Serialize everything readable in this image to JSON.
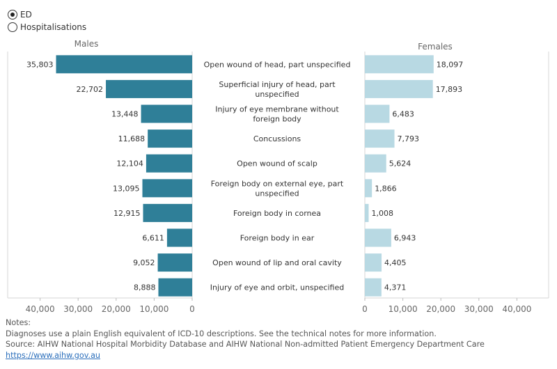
{
  "filter": {
    "options": [
      {
        "label": "ED",
        "selected": true
      },
      {
        "label": "Hospitalisations",
        "selected": false
      }
    ]
  },
  "chart_data": {
    "type": "bar",
    "orientation": "horizontal-butterfly",
    "categories": [
      "Open wound of head, part unspecified",
      "Superficial injury of head, part unspecified",
      "Injury of eye membrane without foreign body",
      "Concussions",
      "Open wound of scalp",
      "Foreign body on external eye, part unspecified",
      "Foreign body in cornea",
      "Foreign body in ear",
      "Open wound of lip and oral cavity",
      "Injury of eye and orbit, unspecified"
    ],
    "series": [
      {
        "name": "Males",
        "color": "#2f7f98",
        "values": [
          35803,
          22702,
          13448,
          11688,
          12104,
          13095,
          12915,
          6611,
          9052,
          8888
        ],
        "labels": [
          "35,803",
          "22,702",
          "13,448",
          "11,688",
          "12,104",
          "13,095",
          "12,915",
          "6,611",
          "9,052",
          "8,888"
        ]
      },
      {
        "name": "Females",
        "color": "#b8d9e3",
        "values": [
          18097,
          17893,
          6483,
          7793,
          5624,
          1866,
          1008,
          6943,
          4405,
          4371
        ],
        "labels": [
          "18,097",
          "17,893",
          "6,483",
          "7,793",
          "5,624",
          "1,866",
          "1,008",
          "6,943",
          "4,405",
          "4,371"
        ]
      }
    ],
    "xlim": [
      0,
      45000
    ],
    "males_ticks": [
      "40,000",
      "30,000",
      "20,000",
      "10,000",
      "0"
    ],
    "females_ticks": [
      "0",
      "10,000",
      "20,000",
      "30,000",
      "40,000"
    ],
    "tick_values": [
      40000,
      30000,
      20000,
      10000,
      0
    ]
  },
  "notes": {
    "heading": "Notes:",
    "line1": "Diagnoses use a plain English equivalent of ICD-10 descriptions. See the technical notes for more information.",
    "line2": "Source: AIHW National Hospital Morbidity Database and AIHW National Non-admitted Patient Emergency Department Care",
    "link": "https://www.aihw.gov.au"
  }
}
